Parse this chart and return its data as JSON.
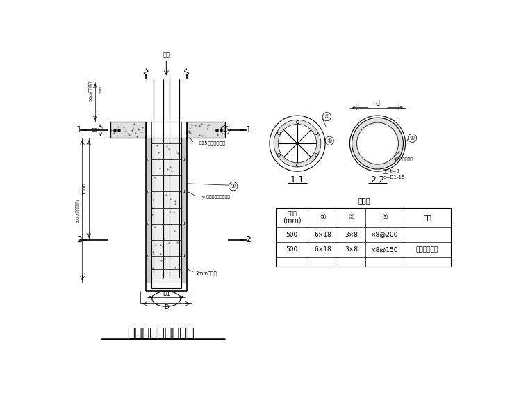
{
  "title": "桩顶与承台连接大样",
  "table_title": "配筋表",
  "table_headers": [
    "桩外径\n(mm)",
    "①",
    "②",
    "③",
    "备注"
  ],
  "table_rows": [
    [
      "500",
      "6×18",
      "3×8",
      "×8@200",
      ""
    ],
    [
      "500",
      "6×18",
      "3×8",
      "×8@150",
      "仅用于抗拔桩"
    ]
  ],
  "annotations": {
    "zhuangmao": "桩帽",
    "dim_50d": "50d(预应力筋)",
    "dim_35d": "35d",
    "dim_50": "50",
    "pile_d1": "D1",
    "pile_d": "D",
    "c15": "C15素混凝土垫层",
    "c30": "C30钢筋混凝土桩基按实",
    "spiral": "3mm螺旋筋",
    "dim_1500": "1500",
    "dim_3000": "3000(桩嵌岩深度)",
    "d_label": "d",
    "t_note": "壁厚 t=3",
    "d_eq": "d=D1-15",
    "label1": "①",
    "label2": "②",
    "label3": "③",
    "view11": "1-1",
    "view22": "2-2"
  }
}
